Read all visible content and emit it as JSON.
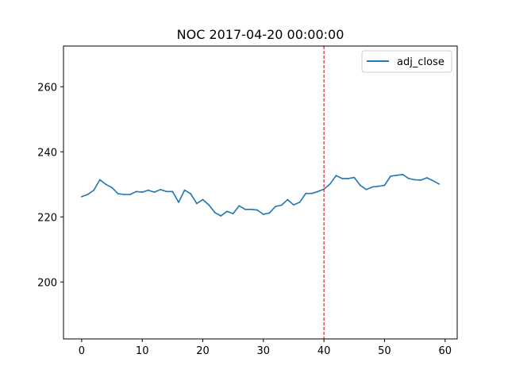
{
  "chart_data": {
    "type": "line",
    "title": "NOC 2017-04-20 00:00:00",
    "xlabel": "",
    "ylabel": "",
    "xlim": [
      -3,
      62
    ],
    "ylim": [
      182.5,
      272.5
    ],
    "xticks": [
      0,
      10,
      20,
      30,
      40,
      50,
      60
    ],
    "yticks": [
      200,
      220,
      240,
      260
    ],
    "grid": false,
    "legend": {
      "placement": "top-right"
    },
    "series": [
      {
        "name": "adj_close",
        "color": "#1f77b4",
        "x": [
          0,
          1,
          2,
          3,
          4,
          5,
          6,
          7,
          8,
          9,
          10,
          11,
          12,
          13,
          14,
          15,
          16,
          17,
          18,
          19,
          20,
          21,
          22,
          23,
          24,
          25,
          26,
          27,
          28,
          29,
          30,
          31,
          32,
          33,
          34,
          35,
          36,
          37,
          38,
          39,
          40,
          41,
          42,
          43,
          44,
          45,
          46,
          47,
          48,
          49,
          50,
          51,
          52,
          53,
          54,
          55,
          56,
          57,
          58,
          59
        ],
        "values": [
          226.2,
          226.9,
          228.2,
          231.4,
          230.0,
          229.0,
          227.1,
          226.9,
          226.9,
          227.8,
          227.6,
          228.2,
          227.6,
          228.4,
          227.8,
          227.8,
          224.5,
          228.2,
          227.1,
          224.1,
          225.3,
          223.7,
          221.3,
          220.3,
          221.7,
          221.0,
          223.4,
          222.3,
          222.3,
          222.1,
          220.8,
          221.2,
          223.2,
          223.6,
          225.3,
          223.7,
          224.5,
          227.2,
          227.2,
          227.8,
          228.5,
          230.1,
          232.7,
          231.8,
          231.8,
          232.1,
          229.7,
          228.4,
          229.2,
          229.4,
          229.7,
          232.5,
          232.8,
          233.0,
          231.8,
          231.4,
          231.3,
          232.0,
          231.1,
          230.1
        ]
      }
    ],
    "annotations": [
      {
        "type": "vline",
        "x": 40,
        "color": "#d62728",
        "style": "dashed"
      }
    ]
  }
}
